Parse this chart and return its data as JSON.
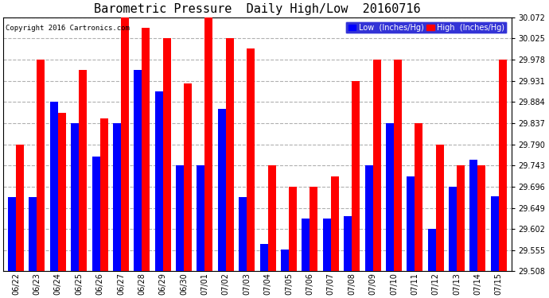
{
  "title": "Barometric Pressure  Daily High/Low  20160716",
  "copyright": "Copyright 2016 Cartronics.com",
  "legend_low": "Low  (Inches/Hg)",
  "legend_high": "High  (Inches/Hg)",
  "dates": [
    "06/22",
    "06/23",
    "06/24",
    "06/25",
    "06/26",
    "06/27",
    "06/28",
    "06/29",
    "06/30",
    "07/01",
    "07/02",
    "07/03",
    "07/04",
    "07/05",
    "07/06",
    "07/07",
    "07/08",
    "07/09",
    "07/10",
    "07/11",
    "07/12",
    "07/13",
    "07/14",
    "07/15"
  ],
  "low_values": [
    29.672,
    29.672,
    29.884,
    29.837,
    29.762,
    29.837,
    29.955,
    29.908,
    29.743,
    29.743,
    29.868,
    29.672,
    29.568,
    29.556,
    29.625,
    29.625,
    29.631,
    29.743,
    29.837,
    29.718,
    29.602,
    29.696,
    29.755,
    29.674
  ],
  "high_values": [
    29.79,
    29.978,
    29.86,
    29.955,
    29.848,
    30.072,
    30.048,
    30.025,
    29.925,
    30.072,
    30.025,
    30.002,
    29.743,
    29.696,
    29.696,
    29.718,
    29.931,
    29.978,
    29.978,
    29.837,
    29.79,
    29.743,
    29.743,
    29.978
  ],
  "ylim_min": 29.508,
  "ylim_max": 30.072,
  "yticks": [
    29.508,
    29.555,
    29.602,
    29.649,
    29.696,
    29.743,
    29.79,
    29.837,
    29.884,
    29.931,
    29.978,
    30.025,
    30.072
  ],
  "bar_color_low": "#0000ff",
  "bar_color_high": "#ff0000",
  "background_color": "#ffffff",
  "grid_color": "#b0b0b0",
  "title_fontsize": 11,
  "tick_fontsize": 7,
  "copyright_fontsize": 6.5,
  "legend_fontsize": 7,
  "bar_width": 0.38,
  "baseline": 29.508,
  "figwidth": 6.9,
  "figheight": 3.75,
  "dpi": 100
}
